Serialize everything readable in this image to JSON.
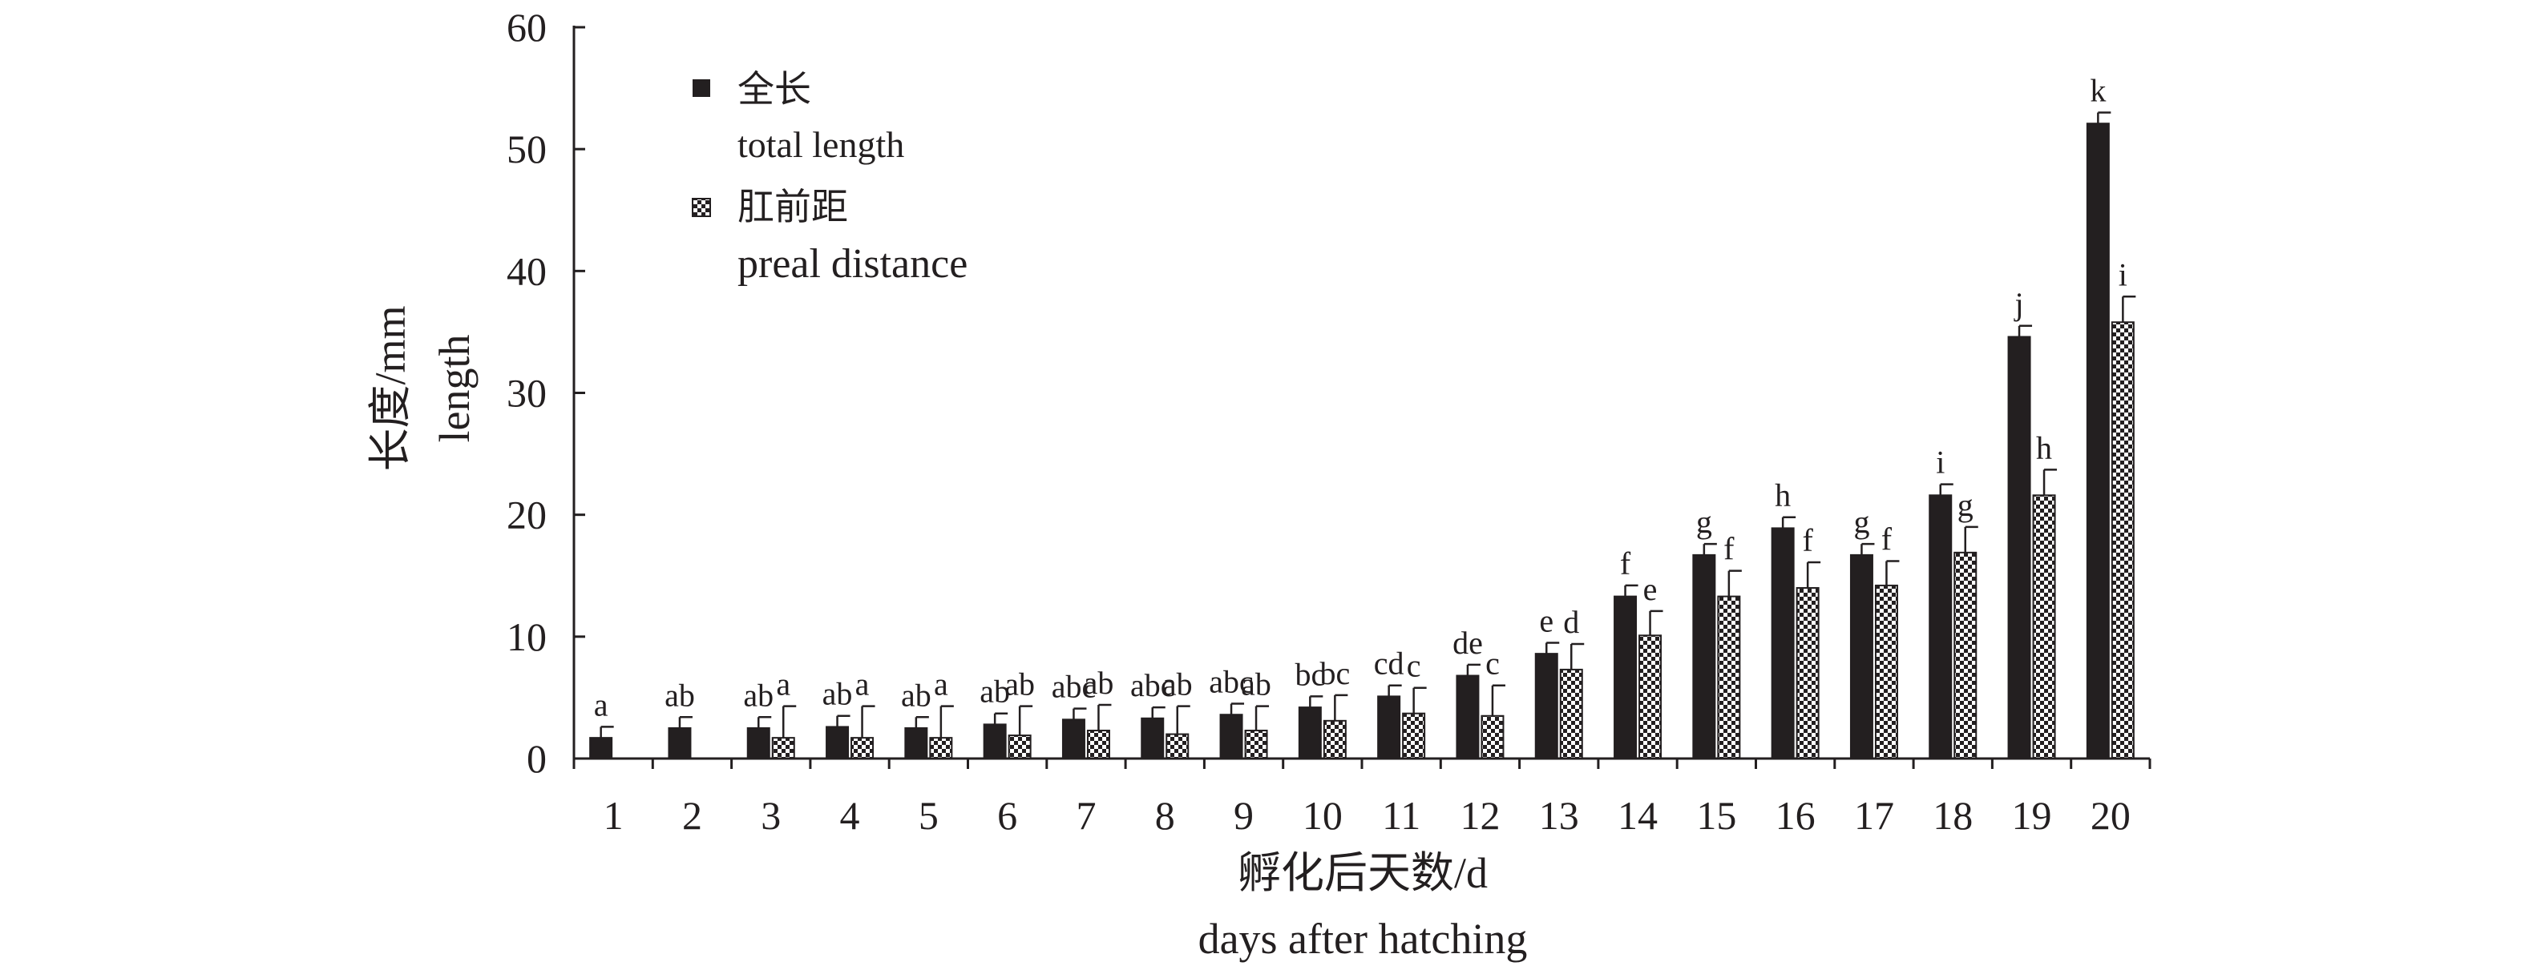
{
  "chart_data": {
    "type": "bar",
    "xlabel": [
      "孵化后天数/d",
      "days after hatching"
    ],
    "ylabel": [
      "长度/mm",
      "length"
    ],
    "ylim": [
      0,
      60
    ],
    "yticks": [
      0,
      10,
      20,
      30,
      40,
      50,
      60
    ],
    "categories": [
      "1",
      "2",
      "3",
      "4",
      "5",
      "6",
      "7",
      "8",
      "9",
      "10",
      "11",
      "12",
      "13",
      "14",
      "15",
      "16",
      "17",
      "18",
      "19",
      "20"
    ],
    "legend_position": "top-left",
    "series": [
      {
        "name": "全长",
        "name_en": "total length",
        "fill": "solid",
        "color": "#231f20",
        "values": [
          1.7,
          2.5,
          2.5,
          2.6,
          2.5,
          2.8,
          3.2,
          3.3,
          3.6,
          4.2,
          5.1,
          6.8,
          8.6,
          13.3,
          16.7,
          18.9,
          16.7,
          21.6,
          34.6,
          52.1
        ],
        "errors": [
          0.9,
          0.9,
          0.9,
          0.9,
          0.9,
          0.9,
          0.9,
          0.9,
          0.9,
          0.9,
          0.9,
          0.9,
          0.9,
          0.9,
          0.9,
          0.9,
          0.9,
          0.9,
          0.9,
          0.9
        ],
        "labels": [
          "a",
          "ab",
          "ab",
          "ab",
          "ab",
          "ab",
          "abc",
          "abc",
          "abc",
          "bc",
          "cd",
          "de",
          "e",
          "f",
          "g",
          "h",
          "g",
          "i",
          "j",
          "k"
        ]
      },
      {
        "name": "肛前距",
        "name_en": "preal distance",
        "fill": "checkered",
        "color": "#231f20",
        "values": [
          null,
          null,
          1.7,
          1.7,
          1.7,
          1.9,
          2.3,
          2.0,
          2.3,
          3.1,
          3.7,
          3.5,
          7.3,
          10.1,
          13.3,
          14.0,
          14.2,
          16.9,
          21.6,
          35.8
        ],
        "errors": [
          null,
          null,
          2.6,
          2.6,
          2.6,
          2.4,
          2.1,
          2.3,
          2.0,
          2.1,
          2.1,
          2.5,
          2.1,
          2.0,
          2.1,
          2.1,
          2.0,
          2.1,
          2.1,
          2.1
        ],
        "labels": [
          null,
          null,
          "a",
          "a",
          "a",
          "ab",
          "ab",
          "ab",
          "ab",
          "bc",
          "c",
          "c",
          "d",
          "e",
          "f",
          "f",
          "f",
          "g",
          "h",
          "i"
        ]
      }
    ]
  }
}
